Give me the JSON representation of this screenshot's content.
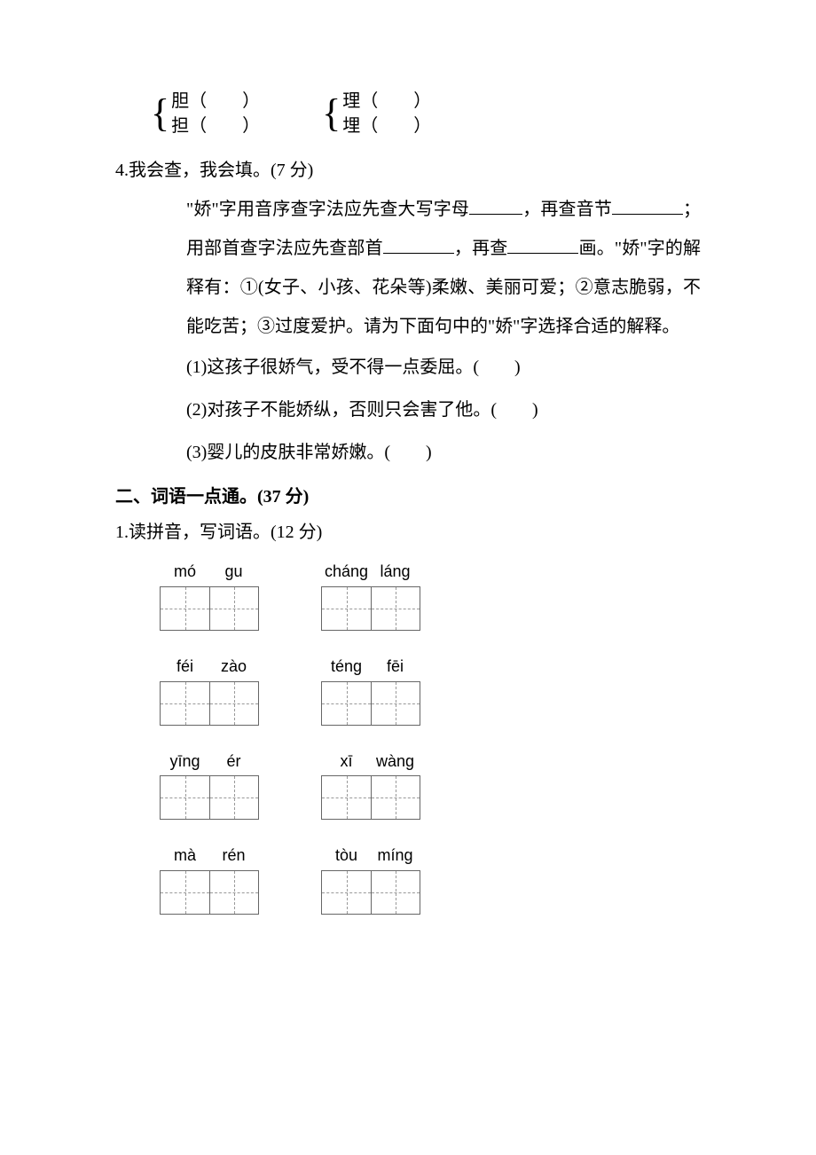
{
  "char_pairs": [
    {
      "top_char": "胆",
      "bot_char": "担",
      "paren": "（　　）"
    },
    {
      "top_char": "理",
      "bot_char": "埋",
      "paren": "（　　）"
    }
  ],
  "q4": {
    "head": "4.我会查，我会填。(7 分)",
    "body_1a": "\"娇\"字用音序查字法应先查大写字母",
    "body_1b": "，再查音节",
    "body_2a": "；用部首查字法应先查部首",
    "body_2b": "，再查",
    "body_2c": "画。",
    "body_3": "\"娇\"字的解释有：①(女子、小孩、花朵等)柔嫩、美丽可爱；②意志脆弱，不能吃苦；③过度爱护。请为下面句中的\"娇\"字选择合适的解释。",
    "items": [
      "(1)这孩子很娇气，受不得一点委屈。(　　)",
      "(2)对孩子不能娇纵，否则只会害了他。(　　)",
      "(3)婴儿的皮肤非常娇嫩。(　　)"
    ]
  },
  "sec2": {
    "head": "二、词语一点通。(37 分)",
    "q1_head": "1.读拼音，写词语。(12 分)",
    "rows": [
      [
        [
          "mó",
          "gu"
        ],
        [
          "cháng",
          "láng"
        ]
      ],
      [
        [
          "féi",
          "zào"
        ],
        [
          "téng",
          "fēi"
        ]
      ],
      [
        [
          "yīng",
          "ér"
        ],
        [
          "xī",
          "wàng"
        ]
      ],
      [
        [
          "mà",
          "rén"
        ],
        [
          "tòu",
          "míng"
        ]
      ]
    ]
  }
}
